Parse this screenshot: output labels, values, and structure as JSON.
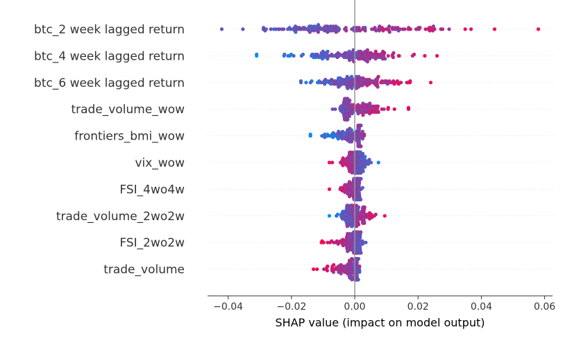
{
  "chart_data": {
    "type": "scatter",
    "subtype": "shap-beeswarm",
    "title": "",
    "xlabel": "SHAP value (impact on model output)",
    "ylabel": "",
    "xlim": [
      -0.0465,
      0.0625
    ],
    "xticks": [
      -0.04,
      -0.02,
      0.0,
      0.02,
      0.04,
      0.06
    ],
    "xtick_labels": [
      "−0.04",
      "−0.02",
      "0.00",
      "0.02",
      "0.04",
      "0.06"
    ],
    "zero_line": 0.0,
    "grid": false,
    "color_low": "#008bfb",
    "color_high": "#ff0052",
    "features": [
      {
        "name": "btc_2 week lagged return",
        "min": -0.042,
        "max": 0.058,
        "center": -0.005,
        "neg_high": false
      },
      {
        "name": "btc_4 week lagged return",
        "min": -0.031,
        "max": 0.026,
        "center": 0.0,
        "neg_high": false
      },
      {
        "name": "btc_6 week lagged return",
        "min": -0.017,
        "max": 0.024,
        "center": 0.0,
        "neg_high": false
      },
      {
        "name": "trade_volume_wow",
        "min": -0.007,
        "max": 0.017,
        "center": -0.002,
        "neg_high": false
      },
      {
        "name": "frontiers_bmi_wow",
        "min": -0.014,
        "max": 0.003,
        "center": 0.001,
        "neg_high": false
      },
      {
        "name": "vix_wow",
        "min": -0.008,
        "max": 0.0075,
        "center": 0.0005,
        "neg_high": true
      },
      {
        "name": "FSI_4wo4w",
        "min": -0.008,
        "max": 0.0025,
        "center": 0.0005,
        "neg_high": true
      },
      {
        "name": "trade_volume_2wo2w",
        "min": -0.008,
        "max": 0.0095,
        "center": -0.0005,
        "neg_high": false
      },
      {
        "name": "FSI_2wo2w",
        "min": -0.0105,
        "max": 0.0035,
        "center": 0.0,
        "neg_high": true
      },
      {
        "name": "trade_volume",
        "min": -0.013,
        "max": 0.0015,
        "center": 0.0,
        "neg_high": true
      }
    ]
  }
}
